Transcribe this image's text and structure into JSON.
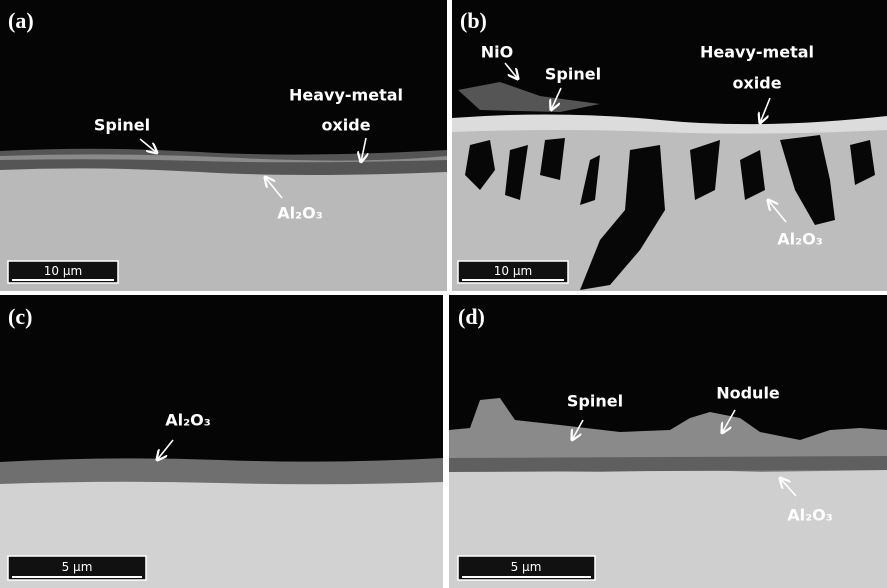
{
  "panels": [
    {
      "label": "(a)",
      "annotations": [
        "Spinel",
        "Heavy-metal",
        "oxide",
        "Al₂O₃"
      ],
      "scale_bar": "10 μm"
    },
    {
      "label": "(b)",
      "annotations": [
        "NiO",
        "Spinel",
        "Heavy-metal",
        "oxide",
        "Al₂O₃"
      ],
      "scale_bar": "10 μm"
    },
    {
      "label": "(c)",
      "annotations": [
        "Al₂O₃"
      ],
      "scale_bar": "5 μm"
    },
    {
      "label": "(d)",
      "annotations": [
        "Spinel",
        "Nodule",
        "Al₂O₃"
      ],
      "scale_bar": "5 μm"
    }
  ]
}
